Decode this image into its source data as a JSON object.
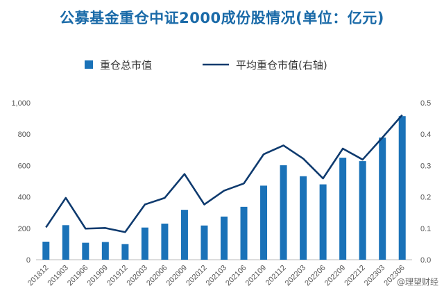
{
  "title": "公募基金重仓中证2000成份股情况(单位：亿元)",
  "watermark": "@理望财经",
  "colors": {
    "bar": "#1a72b8",
    "line": "#0e3a6e",
    "title": "#1a6aa8"
  },
  "chart_data": {
    "type": "bar+line",
    "title": "公募基金重仓中证2000成份股情况(单位：亿元)",
    "legend": [
      "重仓总市值",
      "平均重仓市值(右轴)"
    ],
    "legend_position": "top-center",
    "categories": [
      "201812",
      "201903",
      "201906",
      "201909",
      "201912",
      "202003",
      "202006",
      "202009",
      "202012",
      "202103",
      "202106",
      "202109",
      "202112",
      "202203",
      "202206",
      "202209",
      "202212",
      "202303",
      "202306"
    ],
    "series": [
      {
        "name": "重仓总市值",
        "type": "bar",
        "axis": "left",
        "values": [
          115,
          220,
          108,
          113,
          100,
          205,
          230,
          318,
          218,
          275,
          337,
          472,
          602,
          532,
          480,
          650,
          628,
          778,
          915
        ]
      },
      {
        "name": "平均重仓市值(右轴)",
        "type": "line",
        "axis": "right",
        "values": [
          0.103,
          0.197,
          0.099,
          0.101,
          0.088,
          0.176,
          0.197,
          0.273,
          0.176,
          0.22,
          0.243,
          0.336,
          0.364,
          0.322,
          0.259,
          0.354,
          0.319,
          0.389,
          0.461
        ]
      }
    ],
    "left_axis": {
      "ylim": [
        0,
        1000
      ],
      "ticks": [
        "0",
        "200",
        "400",
        "600",
        "800",
        "1,000"
      ]
    },
    "right_axis": {
      "ylim": [
        0,
        0.5
      ],
      "ticks": [
        "0.0",
        "0.1",
        "0.2",
        "0.3",
        "0.4",
        "0.5"
      ]
    },
    "grid": false
  }
}
